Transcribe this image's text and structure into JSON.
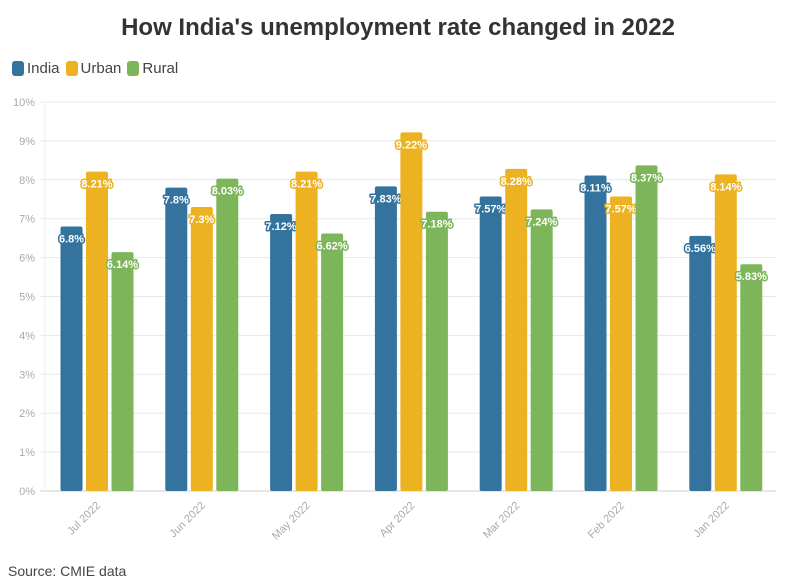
{
  "chart_data": {
    "type": "bar",
    "title": "How India's unemployment rate changed in 2022",
    "categories": [
      "Jul 2022",
      "Jun 2022",
      "May 2022",
      "Apr 2022",
      "Mar 2022",
      "Feb 2022",
      "Jan 2022"
    ],
    "series": [
      {
        "name": "India",
        "color": "#33739e",
        "values": [
          6.8,
          7.8,
          7.12,
          7.83,
          7.57,
          8.11,
          6.56
        ],
        "labels": [
          "6.8%",
          "7.8%",
          "7.12%",
          "7.83%",
          "7.57%",
          "8.11%",
          "6.56%"
        ]
      },
      {
        "name": "Urban",
        "color": "#ecb222",
        "values": [
          8.21,
          7.3,
          8.21,
          9.22,
          8.28,
          7.57,
          8.14
        ],
        "labels": [
          "8.21%",
          "7.3%",
          "8.21%",
          "9.22%",
          "8.28%",
          "7.57%",
          "8.14%"
        ]
      },
      {
        "name": "Rural",
        "color": "#7db55a",
        "values": [
          6.14,
          8.03,
          6.62,
          7.18,
          7.24,
          8.37,
          5.83
        ],
        "labels": [
          "6.14%",
          "8.03%",
          "6.62%",
          "7.18%",
          "7.24%",
          "8.37%",
          "5.83%"
        ]
      }
    ],
    "yticks": [
      "0%",
      "1%",
      "2%",
      "3%",
      "4%",
      "5%",
      "6%",
      "7%",
      "8%",
      "9%",
      "10%"
    ],
    "ylim": [
      0,
      10
    ],
    "grid": true,
    "legend": "top-left",
    "source": "Source: CMIE data"
  }
}
